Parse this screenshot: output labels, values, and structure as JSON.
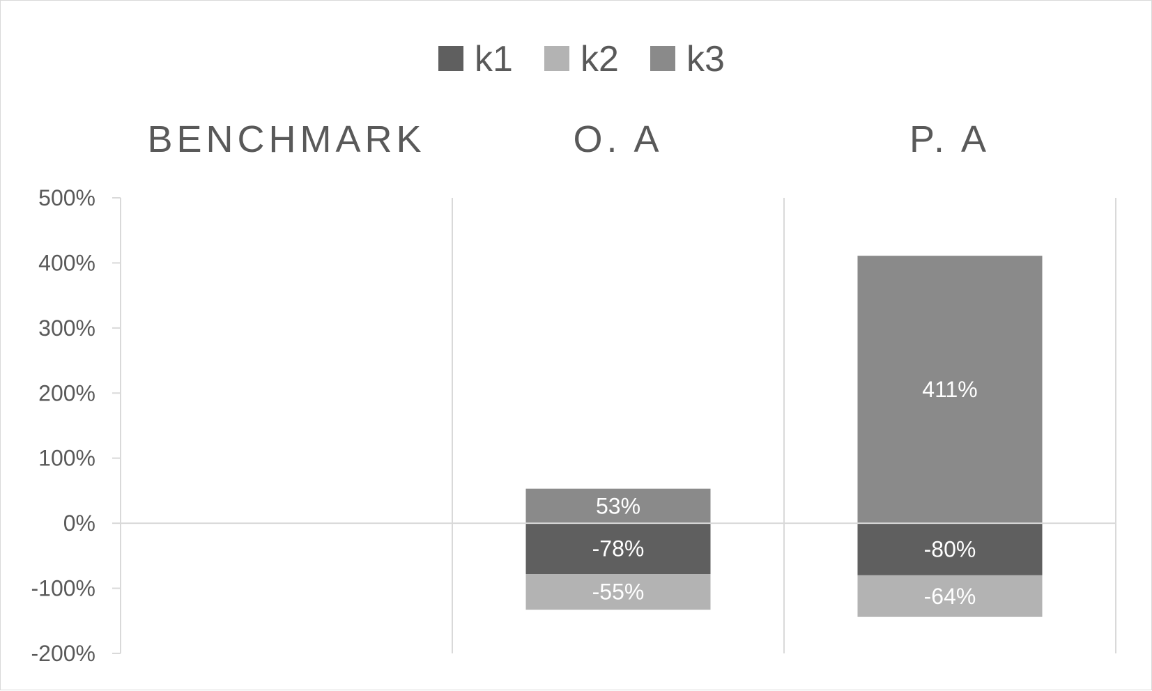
{
  "chart_data": {
    "type": "bar",
    "stacked": true,
    "categories": [
      "BENCHMARK",
      "O. A",
      "P. A"
    ],
    "series": [
      {
        "name": "k1",
        "color": "#5f5f5f",
        "values": [
          null,
          -78,
          -80
        ]
      },
      {
        "name": "k2",
        "color": "#b3b3b3",
        "values": [
          null,
          -55,
          -64
        ]
      },
      {
        "name": "k3",
        "color": "#8a8a8a",
        "values": [
          null,
          53,
          411
        ]
      }
    ],
    "data_labels": [
      [
        "",
        "-78%",
        "-80%"
      ],
      [
        "",
        "-55%",
        "-64%"
      ],
      [
        "",
        "53%",
        "411%"
      ]
    ],
    "ylim": [
      -200,
      500
    ],
    "yticks": [
      500,
      400,
      300,
      200,
      100,
      0,
      -100,
      -200
    ],
    "ytick_labels": [
      "500%",
      "400%",
      "300%",
      "200%",
      "100%",
      "0%",
      "-100%",
      "-200%"
    ],
    "legend_position": "top",
    "category_labels_position": "top",
    "grid": "vertical category separators",
    "title": "",
    "xlabel": "",
    "ylabel": ""
  }
}
